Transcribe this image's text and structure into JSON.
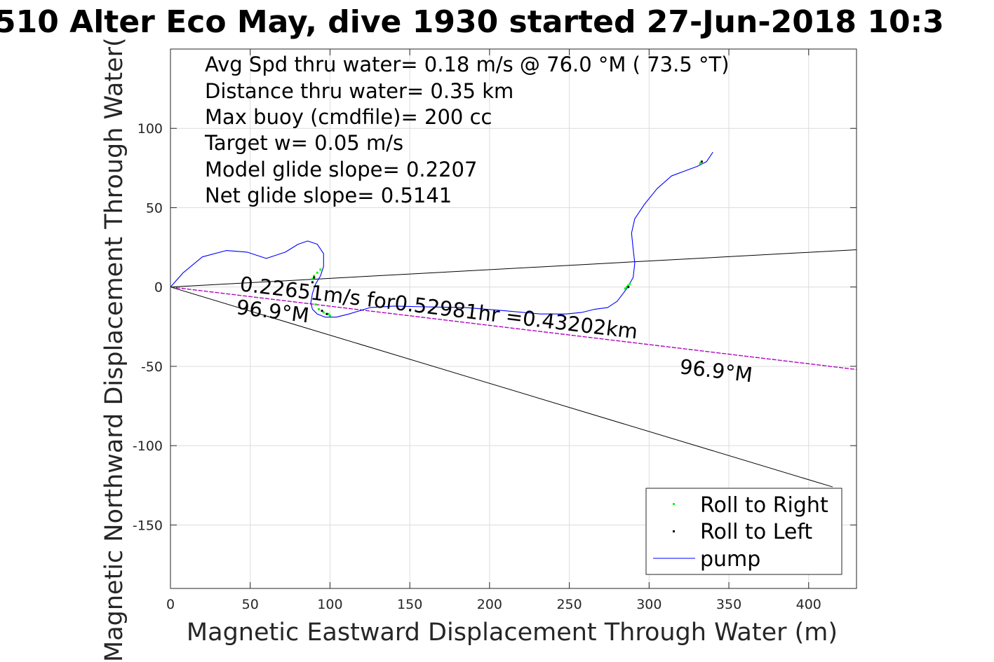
{
  "chart_data": {
    "type": "line",
    "title": "510 Alter Eco May, dive 1930 started 27-Jun-2018 10:3",
    "xlabel": "Magnetic Eastward Displacement Through Water (m)",
    "ylabel": "Magnetic Northward Displacement Through Water(",
    "xlim": [
      0,
      430
    ],
    "ylim": [
      -190,
      150
    ],
    "xticks": [
      0,
      50,
      100,
      150,
      200,
      250,
      300,
      350,
      400
    ],
    "yticks": [
      100,
      50,
      0,
      -50,
      -100,
      -150
    ],
    "grid": true,
    "legend_position": "bottom-right",
    "info_lines": [
      "Avg Spd thru water=  0.18 m/s @  76.0 °M ( 73.5 °T)",
      "Distance thru water=  0.35 km",
      "Max buoy (cmdfile)= 200 cc",
      "Target w= 0.05 m/s",
      "Model glide slope= 0.2207",
      "Net glide slope= 0.5141"
    ],
    "annotations": {
      "speed_text": "0.22651m/s for0.52981hr =0.43202km",
      "heading_near": "96.9°M",
      "heading_far": "96.9°M"
    },
    "reference_lines": [
      {
        "name": "upper-bound",
        "x": [
          0,
          430
        ],
        "y": [
          0,
          23.5
        ]
      },
      {
        "name": "lower-bound",
        "x": [
          0,
          415
        ],
        "y": [
          0,
          -126
        ]
      },
      {
        "name": "heading-center",
        "x": [
          0,
          430
        ],
        "y": [
          0,
          -52
        ]
      }
    ],
    "series": [
      {
        "name": "pump",
        "color": "#0000ff",
        "x": [
          0,
          8,
          20,
          35,
          48,
          60,
          72,
          80,
          86,
          92,
          96,
          96,
          94,
          91,
          89,
          88,
          89,
          92,
          97,
          104,
          112,
          125,
          140,
          160,
          185,
          210,
          232,
          248,
          258,
          266,
          274,
          280,
          286,
          290,
          291,
          290,
          289,
          291,
          297,
          305,
          314,
          322,
          330,
          336,
          340
        ],
        "y": [
          0,
          9,
          19,
          23,
          22,
          18,
          22,
          27,
          29,
          27,
          21,
          13,
          7,
          2,
          -4,
          -10,
          -14,
          -17,
          -19,
          -19,
          -17,
          -13,
          -12,
          -12.5,
          -13,
          -15,
          -17,
          -17,
          -16,
          -14,
          -13,
          -9,
          -1,
          6,
          15,
          24,
          34,
          43,
          52,
          62,
          70,
          73,
          76,
          79,
          85
        ]
      },
      {
        "name": "Roll to Right",
        "color": "#00ff00",
        "x": [
          89,
          90,
          92,
          94,
          91,
          93,
          96,
          99,
          100,
          285,
          286,
          287,
          288,
          332
        ],
        "y": [
          5,
          7,
          9,
          11,
          -11,
          -14,
          -16,
          -17,
          -18,
          -1,
          0,
          1,
          2,
          78
        ]
      },
      {
        "name": "Roll to Left",
        "color": "#000000",
        "x": [
          89,
          90,
          95,
          98,
          287,
          333
        ],
        "y": [
          3,
          6,
          -15,
          -17,
          0,
          79
        ]
      }
    ],
    "legend": [
      "Roll to Right",
      "Roll to Left",
      "pump"
    ]
  },
  "colors": {
    "axis": "#262626",
    "grid": "#dcdcdc",
    "pump": "#0000ff",
    "roll_right": "#00ff00",
    "roll_left": "#000000",
    "heading_line": "#cc00cc",
    "reference": "#000000"
  }
}
